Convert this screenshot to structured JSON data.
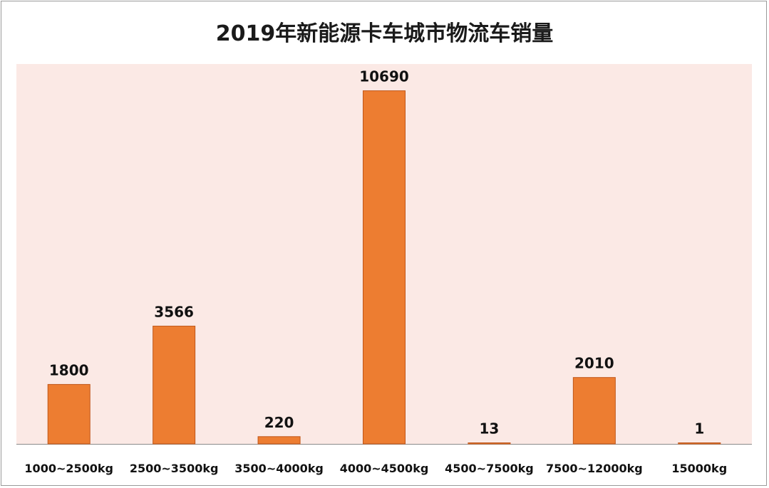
{
  "chart_data": {
    "type": "bar",
    "title": "2019年新能源卡车城市物流车销量",
    "xlabel": "",
    "ylabel": "",
    "categories": [
      "1000~2500kg",
      "2500~3500kg",
      "3500~4000kg",
      "4000~4500kg",
      "4500~7500kg",
      "7500~12000kg",
      "15000kg"
    ],
    "values": [
      1800,
      3566,
      220,
      10690,
      13,
      2010,
      1
    ],
    "ylim": [
      0,
      11500
    ],
    "grid": false,
    "legend": "none",
    "colors": {
      "bar": "#ED7D31",
      "bar_edge": "#C0571A",
      "plot_background": "#FBE9E5",
      "axis": "#8a8a8a"
    }
  }
}
